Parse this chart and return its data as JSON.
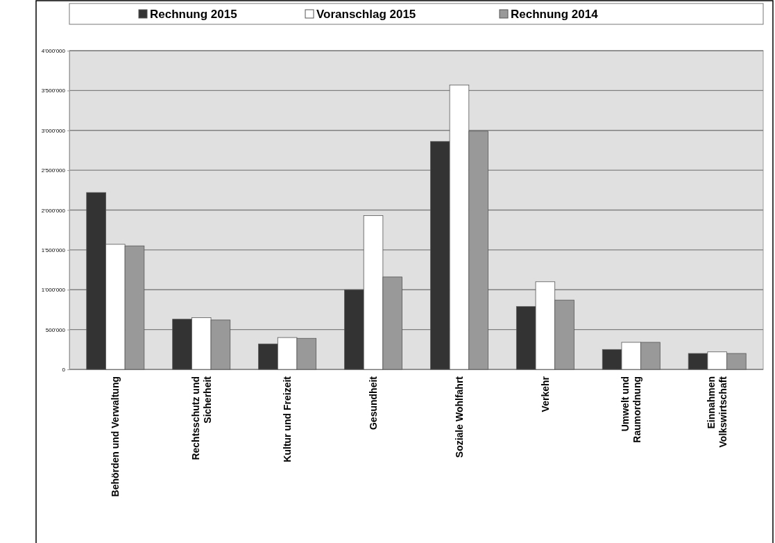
{
  "chart_data": {
    "type": "bar",
    "categories": [
      "Behörden und Verwaltung",
      "Rechtsschutz und\nSicherheit",
      "Kultur und Freizeit",
      "Gesundheit",
      "Soziale Wohlfahrt",
      "Verkehr",
      "Umwelt und\nRaumordnung",
      "Einnahmen\nVolkswirtschaft"
    ],
    "series": [
      {
        "name": "Rechnung 2015",
        "color": "#333333",
        "values": [
          2220000,
          630000,
          320000,
          1000000,
          2860000,
          790000,
          250000,
          200000
        ]
      },
      {
        "name": "Voranschlag 2015",
        "color": "#ffffff",
        "values": [
          1570000,
          650000,
          400000,
          1930000,
          3570000,
          1100000,
          340000,
          220000
        ]
      },
      {
        "name": "Rechnung 2014",
        "color": "#999999",
        "values": [
          1550000,
          620000,
          390000,
          1160000,
          2990000,
          870000,
          340000,
          200000
        ]
      }
    ],
    "ylim": [
      0,
      4000000
    ],
    "yticks": [
      {
        "value": 0,
        "label": "0"
      },
      {
        "value": 500000,
        "label": "500'000"
      },
      {
        "value": 1000000,
        "label": "1'000'000"
      },
      {
        "value": 1500000,
        "label": "1'500'000"
      },
      {
        "value": 2000000,
        "label": "2'000'000"
      },
      {
        "value": 2500000,
        "label": "2'500'000"
      },
      {
        "value": 3000000,
        "label": "3'000'000"
      },
      {
        "value": 3500000,
        "label": "3'500'000"
      },
      {
        "value": 4000000,
        "label": "4'000'000"
      }
    ],
    "grid": "y",
    "legend": "top"
  }
}
